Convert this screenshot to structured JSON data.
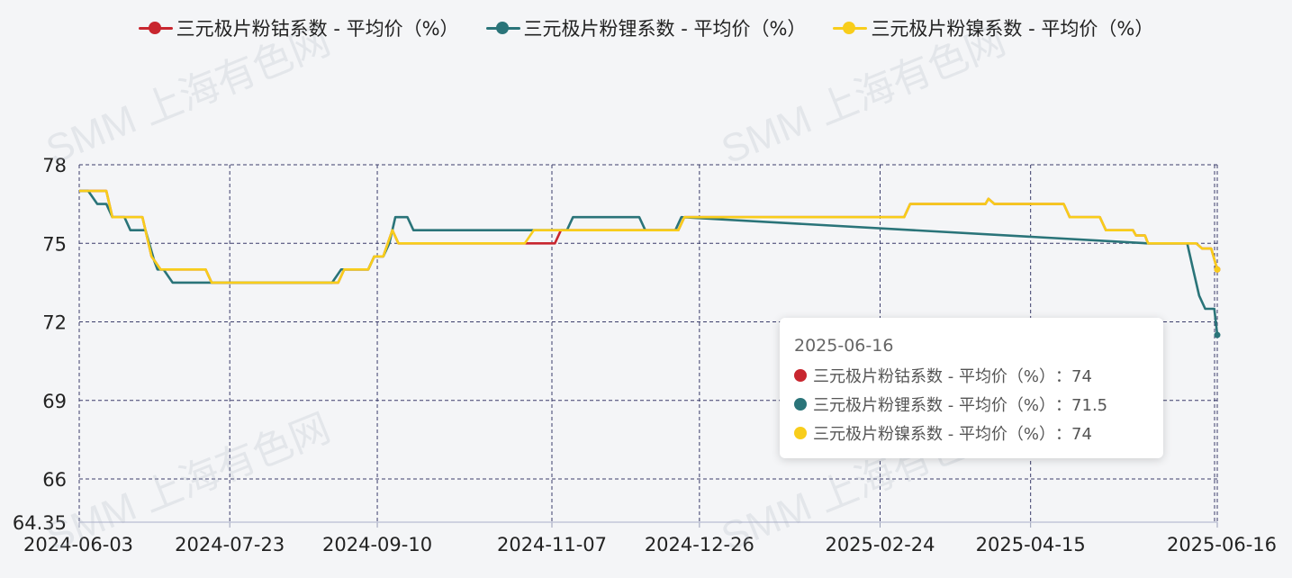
{
  "watermark_text": "SMM 上海有色网",
  "tooltip": {
    "date": "2025-06-16",
    "rows": [
      {
        "label": "三元极片粉钴系数 - 平均价（%）",
        "value": "：74",
        "color": "#c8262f"
      },
      {
        "label": "三元极片粉锂系数 - 平均价（%）",
        "value": "：71.5",
        "color": "#2a7479"
      },
      {
        "label": "三元极片粉镍系数 - 平均价（%）",
        "value": "：74",
        "color": "#f8cd1b"
      }
    ]
  },
  "chart_data": {
    "type": "line",
    "title": "",
    "xlabel": "",
    "ylabel": "",
    "ylim": [
      64.35,
      78
    ],
    "y_ticks": [
      "64.35",
      "66",
      "69",
      "72",
      "75",
      "78"
    ],
    "x_ticks": [
      "2024-06-03",
      "2024-07-23",
      "2024-09-10",
      "2024-11-07",
      "2024-12-26",
      "2025-02-24",
      "2025-04-15",
      "2025-06-16"
    ],
    "x_start": "2024-06-03",
    "x_end": "2025-06-16",
    "grid": true,
    "legend_position": "top",
    "series": [
      {
        "name": "三元极片粉钴系数 - 平均价（%）",
        "color": "#c8262f",
        "points": [
          [
            "2024-06-03",
            77
          ],
          [
            "2024-06-12",
            77
          ],
          [
            "2024-06-14",
            76
          ],
          [
            "2024-06-24",
            76
          ],
          [
            "2024-06-27",
            74.5
          ],
          [
            "2024-06-30",
            74
          ],
          [
            "2024-07-15",
            74
          ],
          [
            "2024-07-17",
            73.5
          ],
          [
            "2024-08-28",
            73.5
          ],
          [
            "2024-08-30",
            74
          ],
          [
            "2024-09-07",
            74
          ],
          [
            "2024-09-09",
            74.5
          ],
          [
            "2024-09-12",
            74.5
          ],
          [
            "2024-09-15",
            75.5
          ],
          [
            "2024-09-17",
            75
          ],
          [
            "2024-10-29",
            75
          ],
          [
            "2024-11-01",
            75
          ],
          [
            "2024-11-08",
            75
          ],
          [
            "2024-11-10",
            75.5
          ],
          [
            "2024-12-19",
            75.5
          ],
          [
            "2024-12-21",
            76
          ],
          [
            "2025-03-04",
            76
          ],
          [
            "2025-03-06",
            76.5
          ],
          [
            "2025-03-31",
            76.5
          ],
          [
            "2025-04-01",
            76.7
          ],
          [
            "2025-04-03",
            76.5
          ],
          [
            "2025-04-26",
            76.5
          ],
          [
            "2025-04-28",
            76
          ],
          [
            "2025-05-08",
            76
          ],
          [
            "2025-05-10",
            75.5
          ],
          [
            "2025-05-19",
            75.5
          ],
          [
            "2025-05-20",
            75.3
          ],
          [
            "2025-05-23",
            75.3
          ],
          [
            "2025-05-24",
            75
          ],
          [
            "2025-06-09",
            75
          ],
          [
            "2025-06-11",
            74.8
          ],
          [
            "2025-06-14",
            74.8
          ],
          [
            "2025-06-16",
            74
          ]
        ]
      },
      {
        "name": "三元极片粉锂系数 - 平均价（%）",
        "color": "#2a7479",
        "points": [
          [
            "2024-06-03",
            77
          ],
          [
            "2024-06-06",
            77
          ],
          [
            "2024-06-09",
            76.5
          ],
          [
            "2024-06-12",
            76.5
          ],
          [
            "2024-06-14",
            76
          ],
          [
            "2024-06-18",
            76
          ],
          [
            "2024-06-20",
            75.5
          ],
          [
            "2024-06-25",
            75.5
          ],
          [
            "2024-06-28",
            74.3
          ],
          [
            "2024-06-29",
            74
          ],
          [
            "2024-07-01",
            74
          ],
          [
            "2024-07-04",
            73.5
          ],
          [
            "2024-08-26",
            73.5
          ],
          [
            "2024-08-29",
            74
          ],
          [
            "2024-09-07",
            74
          ],
          [
            "2024-09-09",
            74.5
          ],
          [
            "2024-09-12",
            74.5
          ],
          [
            "2024-09-14",
            75
          ],
          [
            "2024-09-16",
            76
          ],
          [
            "2024-09-20",
            76
          ],
          [
            "2024-09-22",
            75.5
          ],
          [
            "2024-11-02",
            75.5
          ],
          [
            "2024-11-05",
            75.5
          ],
          [
            "2024-11-12",
            75.5
          ],
          [
            "2024-11-14",
            76
          ],
          [
            "2024-12-06",
            76
          ],
          [
            "2024-12-08",
            75.5
          ],
          [
            "2024-12-18",
            75.5
          ],
          [
            "2024-12-20",
            76
          ],
          [
            "2025-05-24",
            75
          ],
          [
            "2025-06-06",
            75
          ],
          [
            "2025-06-08",
            74
          ],
          [
            "2025-06-10",
            73
          ],
          [
            "2025-06-12",
            72.5
          ],
          [
            "2025-06-15",
            72.5
          ],
          [
            "2025-06-16",
            71.5
          ]
        ]
      },
      {
        "name": "三元极片粉镍系数 - 平均价（%）",
        "color": "#f8cd1b",
        "points": [
          [
            "2024-06-03",
            77
          ],
          [
            "2024-06-12",
            77
          ],
          [
            "2024-06-14",
            76
          ],
          [
            "2024-06-24",
            76
          ],
          [
            "2024-06-27",
            74.5
          ],
          [
            "2024-06-30",
            74
          ],
          [
            "2024-07-15",
            74
          ],
          [
            "2024-07-17",
            73.5
          ],
          [
            "2024-08-28",
            73.5
          ],
          [
            "2024-08-30",
            74
          ],
          [
            "2024-09-07",
            74
          ],
          [
            "2024-09-09",
            74.5
          ],
          [
            "2024-09-12",
            74.5
          ],
          [
            "2024-09-15",
            75.5
          ],
          [
            "2024-09-17",
            75
          ],
          [
            "2024-10-29",
            75
          ],
          [
            "2024-11-01",
            75.5
          ],
          [
            "2024-12-19",
            75.5
          ],
          [
            "2024-12-21",
            76
          ],
          [
            "2025-03-04",
            76
          ],
          [
            "2025-03-06",
            76.5
          ],
          [
            "2025-03-31",
            76.5
          ],
          [
            "2025-04-01",
            76.7
          ],
          [
            "2025-04-03",
            76.5
          ],
          [
            "2025-04-26",
            76.5
          ],
          [
            "2025-04-28",
            76
          ],
          [
            "2025-05-08",
            76
          ],
          [
            "2025-05-10",
            75.5
          ],
          [
            "2025-05-19",
            75.5
          ],
          [
            "2025-05-20",
            75.3
          ],
          [
            "2025-05-23",
            75.3
          ],
          [
            "2025-05-24",
            75
          ],
          [
            "2025-06-09",
            75
          ],
          [
            "2025-06-11",
            74.8
          ],
          [
            "2025-06-14",
            74.8
          ],
          [
            "2025-06-16",
            74
          ]
        ]
      }
    ]
  }
}
